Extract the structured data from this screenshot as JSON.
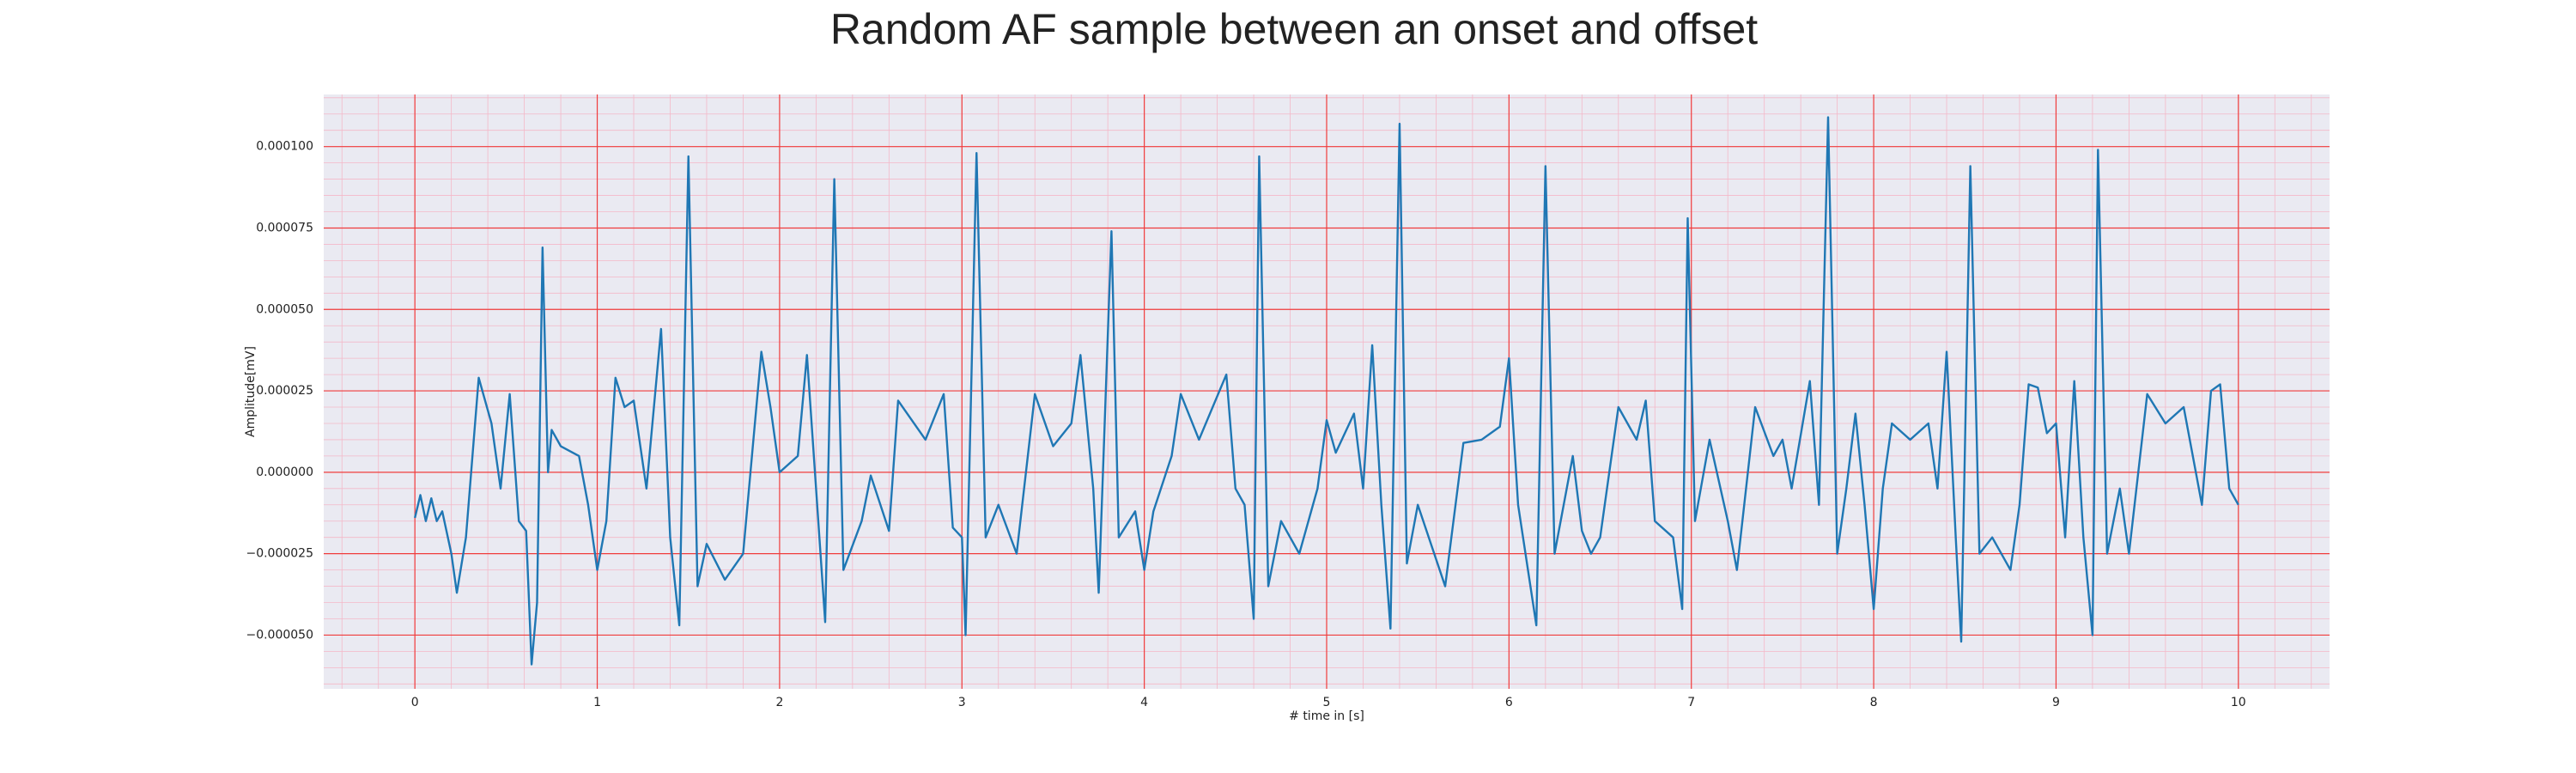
{
  "chart_data": {
    "type": "line",
    "title": "Random AF sample between an onset and offset",
    "xlabel": "# time in [s]",
    "ylabel": "Amplitude[mV]",
    "color": "#1f77b4",
    "grid": true,
    "minor_grid": true,
    "xlim": [
      -0.5,
      10.5
    ],
    "ylim": [
      -6.65e-05,
      0.000116
    ],
    "xticks": [
      0,
      1,
      2,
      3,
      4,
      5,
      6,
      7,
      8,
      9,
      10
    ],
    "yticks": [
      {
        "value": -5e-05,
        "label": "−0.000050"
      },
      {
        "value": -2.5e-05,
        "label": "−0.000025"
      },
      {
        "value": 0,
        "label": "0.000000"
      },
      {
        "value": 2.5e-05,
        "label": "0.000025"
      },
      {
        "value": 5e-05,
        "label": "0.000050"
      },
      {
        "value": 7.5e-05,
        "label": "0.000075"
      },
      {
        "value": 0.0001,
        "label": "0.000100"
      }
    ],
    "x": [
      0,
      0.03,
      0.06,
      0.09,
      0.12,
      0.15,
      0.2,
      0.23,
      0.28,
      0.35,
      0.42,
      0.47,
      0.52,
      0.57,
      0.61,
      0.64,
      0.67,
      0.7,
      0.73,
      0.75,
      0.8,
      0.9,
      0.95,
      1.0,
      1.05,
      1.1,
      1.15,
      1.2,
      1.27,
      1.35,
      1.4,
      1.45,
      1.5,
      1.55,
      1.6,
      1.7,
      1.8,
      1.9,
      1.95,
      2.0,
      2.1,
      2.15,
      2.25,
      2.3,
      2.35,
      2.45,
      2.5,
      2.6,
      2.65,
      2.8,
      2.9,
      2.95,
      3.0,
      3.02,
      3.08,
      3.13,
      3.2,
      3.3,
      3.4,
      3.5,
      3.6,
      3.65,
      3.72,
      3.75,
      3.82,
      3.86,
      3.95,
      4.0,
      4.05,
      4.15,
      4.2,
      4.3,
      4.45,
      4.5,
      4.55,
      4.6,
      4.63,
      4.68,
      4.75,
      4.85,
      4.95,
      5.0,
      5.05,
      5.15,
      5.2,
      5.25,
      5.3,
      5.35,
      5.4,
      5.44,
      5.5,
      5.65,
      5.75,
      5.85,
      5.95,
      6.0,
      6.05,
      6.15,
      6.2,
      6.25,
      6.35,
      6.4,
      6.45,
      6.5,
      6.6,
      6.7,
      6.75,
      6.8,
      6.9,
      6.95,
      6.98,
      7.02,
      7.1,
      7.2,
      7.25,
      7.35,
      7.45,
      7.5,
      7.55,
      7.65,
      7.7,
      7.75,
      7.8,
      7.85,
      7.9,
      7.95,
      8.0,
      8.05,
      8.1,
      8.2,
      8.3,
      8.35,
      8.4,
      8.45,
      8.48,
      8.53,
      8.58,
      8.65,
      8.75,
      8.8,
      8.85,
      8.9,
      8.95,
      9.0,
      9.05,
      9.1,
      9.15,
      9.2,
      9.23,
      9.28,
      9.35,
      9.4,
      9.5,
      9.6,
      9.7,
      9.8,
      9.85,
      9.9,
      9.95,
      10.0
    ],
    "values": [
      -1.4e-05,
      -7e-06,
      -1.5e-05,
      -8e-06,
      -1.5e-05,
      -1.2e-05,
      -2.5e-05,
      -3.7e-05,
      -2e-05,
      2.9e-05,
      1.5e-05,
      -5e-06,
      2.4e-05,
      -1.5e-05,
      -1.8e-05,
      -5.9e-05,
      -4e-05,
      6.9e-05,
      0,
      1.3e-05,
      8e-06,
      5e-06,
      -1e-05,
      -3e-05,
      -1.5e-05,
      2.9e-05,
      2e-05,
      2.2e-05,
      -5e-06,
      4.4e-05,
      -2e-05,
      -4.7e-05,
      9.7e-05,
      -3.5e-05,
      -2.2e-05,
      -3.3e-05,
      -2.5e-05,
      3.7e-05,
      2e-05,
      0,
      5e-06,
      3.6e-05,
      -4.6e-05,
      9e-05,
      -3e-05,
      -1.5e-05,
      -1e-06,
      -1.8e-05,
      2.2e-05,
      1e-05,
      2.4e-05,
      -1.7e-05,
      -2e-05,
      -5e-05,
      9.8e-05,
      -2e-05,
      -1e-05,
      -2.5e-05,
      2.4e-05,
      8e-06,
      1.5e-05,
      3.6e-05,
      -5e-06,
      -3.7e-05,
      7.4e-05,
      -2e-05,
      -1.2e-05,
      -3e-05,
      -1.2e-05,
      5e-06,
      2.4e-05,
      1e-05,
      3e-05,
      -5e-06,
      -1e-05,
      -4.5e-05,
      9.7e-05,
      -3.5e-05,
      -1.5e-05,
      -2.5e-05,
      -5e-06,
      1.6e-05,
      6e-06,
      1.8e-05,
      -5e-06,
      3.9e-05,
      -1e-05,
      -4.8e-05,
      0.000107,
      -2.8e-05,
      -1e-05,
      -3.5e-05,
      9e-06,
      1e-05,
      1.4e-05,
      3.5e-05,
      -1e-05,
      -4.7e-05,
      9.4e-05,
      -2.5e-05,
      5e-06,
      -1.8e-05,
      -2.5e-05,
      -2e-05,
      2e-05,
      1e-05,
      2.2e-05,
      -1.5e-05,
      -2e-05,
      -4.2e-05,
      7.8e-05,
      -1.5e-05,
      1e-05,
      -1.5e-05,
      -3e-05,
      2e-05,
      5e-06,
      1e-05,
      -5e-06,
      2.8e-05,
      -1e-05,
      0.000109,
      -2.5e-05,
      -5e-06,
      1.8e-05,
      -1e-05,
      -4.2e-05,
      -5e-06,
      1.5e-05,
      1e-05,
      1.5e-05,
      -5e-06,
      3.7e-05,
      -2e-05,
      -5.2e-05,
      9.4e-05,
      -2.5e-05,
      -2e-05,
      -3e-05,
      -1e-05,
      2.7e-05,
      2.6e-05,
      1.2e-05,
      1.5e-05,
      -2e-05,
      2.8e-05,
      -2e-05,
      -5e-05,
      9.9e-05,
      -2.5e-05,
      -5e-06,
      -2.5e-05,
      2.4e-05,
      1.5e-05,
      2e-05,
      -1e-05,
      2.5e-05,
      2.7e-05,
      -5e-06,
      -1e-05
    ]
  }
}
